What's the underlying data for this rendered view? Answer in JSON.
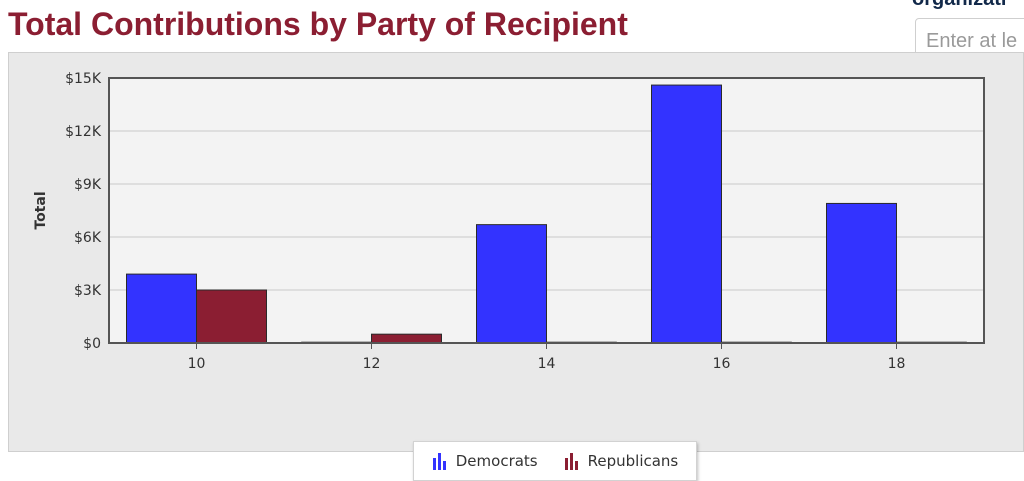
{
  "page": {
    "title": "Total Contributions by Party of Recipient",
    "side_label": "organizati",
    "search_placeholder": "Enter at le"
  },
  "colors": {
    "title": "#8b1e32",
    "democrats": "#3333ff",
    "republicans": "#8b1e32",
    "plot_background": "#f3f3f3",
    "panel_background": "#e9e9e9"
  },
  "chart_data": {
    "type": "bar",
    "title": "",
    "xlabel": "",
    "ylabel": "Total",
    "categories": [
      "10",
      "12",
      "14",
      "16",
      "18"
    ],
    "series": [
      {
        "name": "Democrats",
        "values": [
          3900,
          0,
          6700,
          14600,
          7900
        ]
      },
      {
        "name": "Republicans",
        "values": [
          3000,
          500,
          0,
          0,
          0
        ]
      }
    ],
    "ylim": [
      0,
      15000
    ],
    "yticks": [
      0,
      3000,
      6000,
      9000,
      12000,
      15000
    ],
    "ytick_labels": [
      "$0",
      "$3K",
      "$6K",
      "$9K",
      "$12K",
      "$15K"
    ],
    "grid": true,
    "legend": {
      "position": "bottom-center",
      "items": [
        {
          "label": "Democrats",
          "icon": "bar-chart-icon"
        },
        {
          "label": "Republicans",
          "icon": "bar-chart-icon"
        }
      ]
    }
  }
}
